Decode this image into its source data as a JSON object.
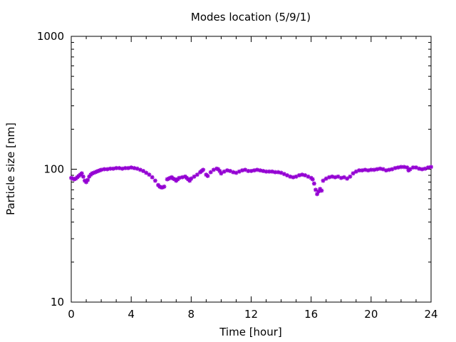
{
  "chart_data": {
    "type": "scatter",
    "title": "Modes location (5/9/1)",
    "xlabel": "Time [hour]",
    "ylabel": "Particle size [nm]",
    "xlim": [
      0,
      24
    ],
    "ylim": [
      10,
      1000
    ],
    "y_scale": "log",
    "x_ticks": [
      0,
      4,
      8,
      12,
      16,
      20,
      24
    ],
    "x_tick_labels": [
      "0",
      "4",
      "8",
      "12",
      "16",
      "20",
      "24"
    ],
    "y_ticks": [
      10,
      100,
      1000
    ],
    "y_tick_labels": [
      "10",
      "100",
      "1000"
    ],
    "grid": false,
    "legend": "none",
    "marker_color": "#9400d3",
    "series": [
      {
        "points": [
          [
            0.0,
            86
          ],
          [
            0.1,
            85
          ],
          [
            0.2,
            84
          ],
          [
            0.3,
            85
          ],
          [
            0.4,
            87
          ],
          [
            0.5,
            89
          ],
          [
            0.6,
            91
          ],
          [
            0.7,
            93
          ],
          [
            0.8,
            88
          ],
          [
            0.9,
            82
          ],
          [
            1.0,
            80
          ],
          [
            1.1,
            83
          ],
          [
            1.2,
            88
          ],
          [
            1.3,
            91
          ],
          [
            1.4,
            93
          ],
          [
            1.5,
            94
          ],
          [
            1.6,
            95
          ],
          [
            1.7,
            96
          ],
          [
            1.8,
            97
          ],
          [
            1.9,
            98
          ],
          [
            2.0,
            99
          ],
          [
            2.2,
            100
          ],
          [
            2.4,
            100
          ],
          [
            2.6,
            101
          ],
          [
            2.8,
            101
          ],
          [
            3.0,
            102
          ],
          [
            3.2,
            102
          ],
          [
            3.4,
            101
          ],
          [
            3.6,
            102
          ],
          [
            3.8,
            102
          ],
          [
            4.0,
            103
          ],
          [
            4.2,
            102
          ],
          [
            4.4,
            101
          ],
          [
            4.6,
            99
          ],
          [
            4.8,
            97
          ],
          [
            5.0,
            94
          ],
          [
            5.2,
            91
          ],
          [
            5.4,
            87
          ],
          [
            5.6,
            82
          ],
          [
            5.8,
            76
          ],
          [
            5.9,
            74
          ],
          [
            6.0,
            73
          ],
          [
            6.1,
            73
          ],
          [
            6.2,
            74
          ],
          [
            6.4,
            84
          ],
          [
            6.5,
            85
          ],
          [
            6.6,
            86
          ],
          [
            6.7,
            87
          ],
          [
            6.8,
            85
          ],
          [
            6.9,
            84
          ],
          [
            7.0,
            82
          ],
          [
            7.1,
            84
          ],
          [
            7.2,
            86
          ],
          [
            7.4,
            87
          ],
          [
            7.6,
            88
          ],
          [
            7.7,
            86
          ],
          [
            7.8,
            84
          ],
          [
            7.9,
            82
          ],
          [
            8.0,
            85
          ],
          [
            8.2,
            88
          ],
          [
            8.4,
            91
          ],
          [
            8.6,
            95
          ],
          [
            8.7,
            97
          ],
          [
            8.8,
            99
          ],
          [
            9.0,
            91
          ],
          [
            9.1,
            89
          ],
          [
            9.3,
            95
          ],
          [
            9.5,
            99
          ],
          [
            9.7,
            101
          ],
          [
            9.8,
            100
          ],
          [
            9.9,
            97
          ],
          [
            10.0,
            93
          ],
          [
            10.2,
            96
          ],
          [
            10.4,
            98
          ],
          [
            10.6,
            97
          ],
          [
            10.8,
            95
          ],
          [
            11.0,
            94
          ],
          [
            11.2,
            96
          ],
          [
            11.4,
            98
          ],
          [
            11.6,
            99
          ],
          [
            11.8,
            97
          ],
          [
            12.0,
            97
          ],
          [
            12.2,
            98
          ],
          [
            12.4,
            99
          ],
          [
            12.6,
            98
          ],
          [
            12.8,
            97
          ],
          [
            13.0,
            96
          ],
          [
            13.2,
            96
          ],
          [
            13.4,
            96
          ],
          [
            13.6,
            95
          ],
          [
            13.8,
            95
          ],
          [
            14.0,
            94
          ],
          [
            14.2,
            92
          ],
          [
            14.4,
            90
          ],
          [
            14.6,
            88
          ],
          [
            14.8,
            87
          ],
          [
            15.0,
            88
          ],
          [
            15.2,
            90
          ],
          [
            15.4,
            91
          ],
          [
            15.6,
            90
          ],
          [
            15.8,
            88
          ],
          [
            16.0,
            86
          ],
          [
            16.1,
            84
          ],
          [
            16.2,
            78
          ],
          [
            16.3,
            70
          ],
          [
            16.4,
            65
          ],
          [
            16.5,
            68
          ],
          [
            16.6,
            71
          ],
          [
            16.7,
            69
          ],
          [
            16.8,
            82
          ],
          [
            17.0,
            85
          ],
          [
            17.2,
            87
          ],
          [
            17.4,
            88
          ],
          [
            17.6,
            87
          ],
          [
            17.8,
            88
          ],
          [
            18.0,
            86
          ],
          [
            18.2,
            87
          ],
          [
            18.4,
            85
          ],
          [
            18.6,
            88
          ],
          [
            18.8,
            93
          ],
          [
            19.0,
            96
          ],
          [
            19.2,
            98
          ],
          [
            19.4,
            98
          ],
          [
            19.6,
            99
          ],
          [
            19.8,
            98
          ],
          [
            20.0,
            99
          ],
          [
            20.2,
            99
          ],
          [
            20.4,
            100
          ],
          [
            20.6,
            101
          ],
          [
            20.8,
            100
          ],
          [
            21.0,
            98
          ],
          [
            21.2,
            99
          ],
          [
            21.4,
            100
          ],
          [
            21.6,
            102
          ],
          [
            21.8,
            103
          ],
          [
            22.0,
            104
          ],
          [
            22.2,
            104
          ],
          [
            22.4,
            103
          ],
          [
            22.5,
            98
          ],
          [
            22.6,
            100
          ],
          [
            22.8,
            103
          ],
          [
            23.0,
            103
          ],
          [
            23.2,
            101
          ],
          [
            23.4,
            100
          ],
          [
            23.6,
            101
          ],
          [
            23.8,
            103
          ],
          [
            24.0,
            104
          ]
        ]
      }
    ]
  }
}
